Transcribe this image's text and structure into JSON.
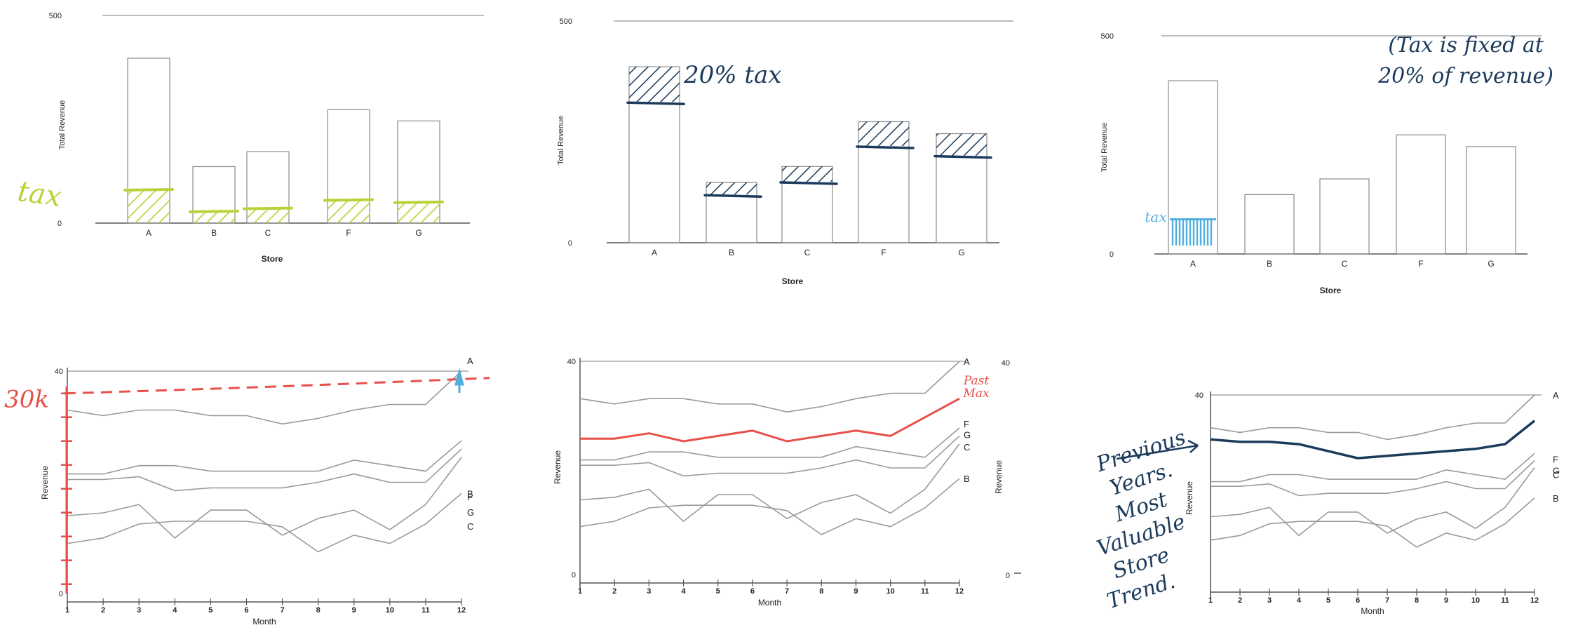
{
  "chart_data": [
    {
      "type": "bar",
      "panel": "top-left",
      "categories": [
        "A",
        "B",
        "C",
        "F",
        "G"
      ],
      "values": [
        397,
        136,
        172,
        273,
        246
      ],
      "ylim": [
        0,
        500
      ],
      "yticks": [
        0,
        500
      ],
      "xlabel": "Store",
      "ylabel": "Total Revenue",
      "tax_fraction": 0.2,
      "annotation": {
        "text": "tax",
        "color": "#b9d23a"
      }
    },
    {
      "type": "bar",
      "panel": "top-middle",
      "categories": [
        "A",
        "B",
        "C",
        "F",
        "G"
      ],
      "values": [
        397,
        136,
        172,
        273,
        246
      ],
      "ylim": [
        0,
        500
      ],
      "yticks": [
        0,
        500
      ],
      "xlabel": "Store",
      "ylabel": "Total Revenue",
      "tax_fraction": 0.2,
      "annotation": {
        "text": "20% tax",
        "color": "#1b3a5c"
      }
    },
    {
      "type": "bar",
      "panel": "top-right",
      "categories": [
        "A",
        "B",
        "C",
        "F",
        "G"
      ],
      "values": [
        397,
        136,
        172,
        273,
        246
      ],
      "ylim": [
        0,
        500
      ],
      "yticks": [
        0,
        500
      ],
      "xlabel": "Store",
      "ylabel": "Total Revenue",
      "annotation": {
        "text": "tax",
        "color": "#4fb0e0",
        "note": [
          "(Tax is fixed at",
          "20% of revenue)"
        ],
        "note_color": "#1b3a5c"
      }
    },
    {
      "type": "line",
      "panel": "bottom-left",
      "x": [
        1,
        2,
        3,
        4,
        5,
        6,
        7,
        8,
        9,
        10,
        11,
        12
      ],
      "ylim": [
        0,
        40
      ],
      "yticks": [
        0,
        40
      ],
      "xlabel": "Month",
      "ylabel": "Revenue",
      "series": [
        {
          "name": "A",
          "values": [
            33,
            32,
            33,
            33,
            32,
            32,
            30.5,
            31.5,
            33,
            34,
            34,
            40
          ]
        },
        {
          "name": "F",
          "values": [
            21.5,
            21.5,
            23,
            23,
            22,
            22,
            22,
            22,
            24,
            23,
            22,
            27.5
          ]
        },
        {
          "name": "G",
          "values": [
            20.5,
            20.5,
            21,
            18.5,
            19,
            19,
            19,
            20,
            21.5,
            20,
            20,
            26
          ]
        },
        {
          "name": "C",
          "values": [
            14,
            14.5,
            16,
            10,
            15,
            15,
            10.5,
            13.5,
            15,
            11.5,
            16,
            24.5
          ]
        },
        {
          "name": "B",
          "values": [
            9,
            10,
            12.5,
            13,
            13,
            13,
            12,
            7.5,
            10.5,
            9,
            12.5,
            18
          ]
        }
      ],
      "annotation": {
        "text": "30k",
        "color": "#e8504a",
        "target": 36
      }
    },
    {
      "type": "line",
      "panel": "bottom-middle",
      "x": [
        1,
        2,
        3,
        4,
        5,
        6,
        7,
        8,
        9,
        10,
        11,
        12
      ],
      "ylim": [
        0,
        40
      ],
      "yticks": [
        0,
        40
      ],
      "xlabel": "Month",
      "ylabel": "Revenue",
      "series": [
        {
          "name": "A",
          "values": [
            33,
            32,
            33,
            33,
            32,
            32,
            30.5,
            31.5,
            33,
            34,
            34,
            40
          ]
        },
        {
          "name": "F",
          "values": [
            21.5,
            21.5,
            23,
            23,
            22,
            22,
            22,
            22,
            24,
            23,
            22,
            27.5
          ]
        },
        {
          "name": "G",
          "values": [
            20.5,
            20.5,
            21,
            18.5,
            19,
            19,
            19,
            20,
            21.5,
            20,
            20,
            26
          ]
        },
        {
          "name": "C",
          "values": [
            14,
            14.5,
            16,
            10,
            15,
            15,
            10.5,
            13.5,
            15,
            11.5,
            16,
            24.5
          ]
        },
        {
          "name": "B",
          "values": [
            9,
            10,
            12.5,
            13,
            13,
            13,
            12,
            7.5,
            10.5,
            9,
            12.5,
            18
          ]
        }
      ],
      "annotation": {
        "text": [
          "Past",
          "Max"
        ],
        "color": "#e8504a",
        "values": [
          25.5,
          25.5,
          26.5,
          25,
          26,
          27,
          25,
          26,
          27,
          26,
          29.5,
          33
        ]
      }
    },
    {
      "type": "line",
      "panel": "bottom-right",
      "x": [
        1,
        2,
        3,
        4,
        5,
        6,
        7,
        8,
        9,
        10,
        11,
        12
      ],
      "ylim": [
        0,
        40
      ],
      "yticks": [
        40
      ],
      "xlabel": "Month",
      "ylabel": "Revenue",
      "series": [
        {
          "name": "A",
          "values": [
            33,
            32,
            33,
            33,
            32,
            32,
            30.5,
            31.5,
            33,
            34,
            34,
            40
          ]
        },
        {
          "name": "F",
          "values": [
            21.5,
            21.5,
            23,
            23,
            22,
            22,
            22,
            22,
            24,
            23,
            22,
            27.5
          ]
        },
        {
          "name": "G",
          "values": [
            20.5,
            20.5,
            21,
            18.5,
            19,
            19,
            19,
            20,
            21.5,
            20,
            20,
            26
          ]
        },
        {
          "name": "C",
          "values": [
            14,
            14.5,
            16,
            10,
            15,
            15,
            10.5,
            13.5,
            15,
            11.5,
            16,
            24.5
          ]
        },
        {
          "name": "B",
          "values": [
            9,
            10,
            12.5,
            13,
            13,
            13,
            12,
            7.5,
            10.5,
            9,
            12.5,
            18
          ]
        }
      ],
      "annotation": {
        "text": [
          "Previous",
          "Years.",
          "Most",
          "Valuable",
          "Store",
          "Trend."
        ],
        "color": "#1b3a5c",
        "values": [
          30.5,
          30,
          30,
          29.5,
          28,
          26.5,
          27,
          27.5,
          28,
          28.5,
          29.5,
          34.5
        ]
      }
    }
  ],
  "colors": {
    "axis": "#555555",
    "bar_outline": "#8a8a8a",
    "line": "#9a9a9a",
    "grid": "#bdbdbd"
  },
  "right_stub": {
    "top": "40",
    "bottom": "0",
    "ylabel": "Revenue"
  }
}
